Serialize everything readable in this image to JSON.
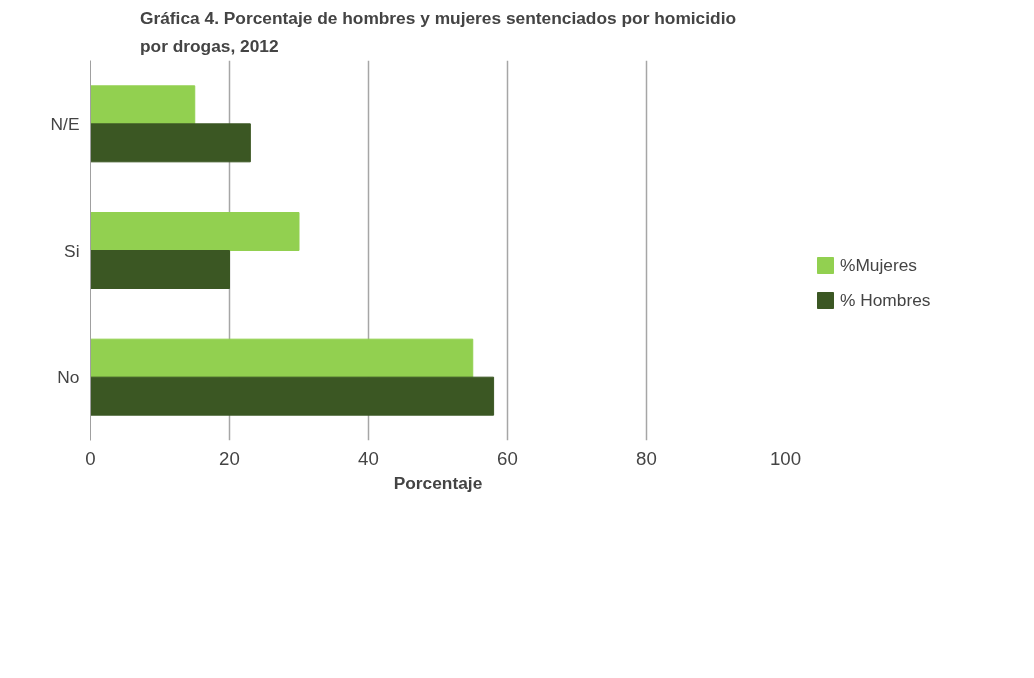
{
  "chart_data": {
    "type": "bar",
    "orientation": "horizontal",
    "title": "Gráfica 4. Porcentaje de hombres y mujeres sentenciados por homicidio por drogas, 2012",
    "xlabel": "Porcentaje",
    "categories": [
      "N/E",
      "Si",
      "No"
    ],
    "series": [
      {
        "name": "%Mujeres",
        "color": "#92d050",
        "values": [
          15,
          30,
          55
        ]
      },
      {
        "name": "% Hombres",
        "color": "#3b5723",
        "values": [
          23,
          20,
          58
        ]
      }
    ],
    "xlim": [
      0,
      100
    ],
    "xticks": [
      0,
      20,
      40,
      60,
      80,
      100
    ],
    "grid": "x",
    "legend": "right"
  }
}
